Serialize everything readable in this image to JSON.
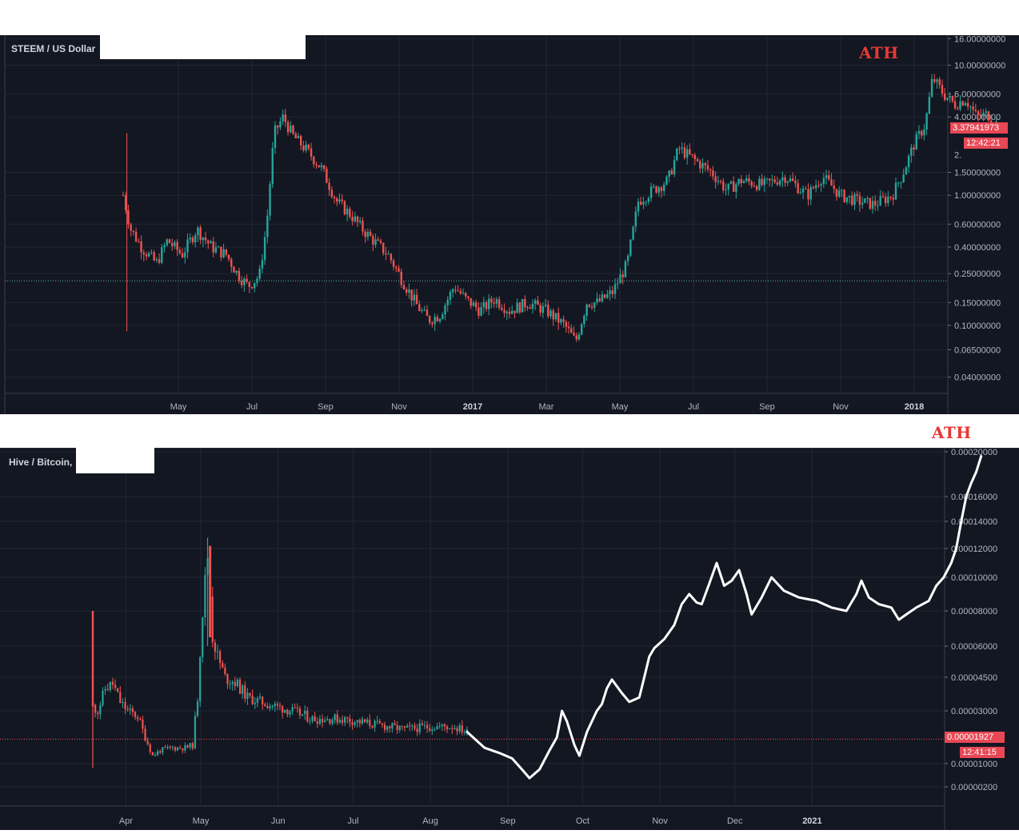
{
  "chart_data": [
    {
      "type": "candlestick",
      "title": "STEEM / US Dollar",
      "y_scale": "log",
      "ylim": [
        0.03,
        17
      ],
      "y_ticks": [
        "16.00000000",
        "10.00000000",
        "6.00000000",
        "4.00000000",
        "1.50000000",
        "1.00000000",
        "0.60000000",
        "0.40000000",
        "0.25000000",
        "0.15000000",
        "0.10000000",
        "0.06500000",
        "0.04000000"
      ],
      "x_ticks": [
        "May",
        "Jul",
        "Sep",
        "Nov",
        "2017",
        "Mar",
        "May",
        "Jul",
        "Sep",
        "Nov",
        "2018"
      ],
      "bold_x_ticks": [
        "2017",
        "2018"
      ],
      "last_price": "3.37941973",
      "countdown": "12:42:21",
      "partial_tick": "2.",
      "horizontal_line": 0.22,
      "annotation": "ATH",
      "price_path": [
        {
          "month": 0.0,
          "price": 1.0
        },
        {
          "month": 0.2,
          "price": 0.55
        },
        {
          "month": 0.5,
          "price": 0.4
        },
        {
          "month": 0.9,
          "price": 0.3
        },
        {
          "month": 1.2,
          "price": 0.45
        },
        {
          "month": 1.6,
          "price": 0.35
        },
        {
          "month": 2.0,
          "price": 0.55
        },
        {
          "month": 2.4,
          "price": 0.4
        },
        {
          "month": 2.8,
          "price": 0.35
        },
        {
          "month": 3.1,
          "price": 0.25
        },
        {
          "month": 3.4,
          "price": 0.2
        },
        {
          "month": 3.7,
          "price": 0.24
        },
        {
          "month": 3.9,
          "price": 0.6
        },
        {
          "month": 4.1,
          "price": 3.0
        },
        {
          "month": 4.35,
          "price": 4.0
        },
        {
          "month": 4.6,
          "price": 2.9
        },
        {
          "month": 5.0,
          "price": 2.2
        },
        {
          "month": 5.4,
          "price": 1.6
        },
        {
          "month": 5.8,
          "price": 0.9
        },
        {
          "month": 6.2,
          "price": 0.7
        },
        {
          "month": 6.5,
          "price": 0.55
        },
        {
          "month": 6.8,
          "price": 0.45
        },
        {
          "month": 7.2,
          "price": 0.35
        },
        {
          "month": 7.6,
          "price": 0.22
        },
        {
          "month": 8.0,
          "price": 0.14
        },
        {
          "month": 8.3,
          "price": 0.11
        },
        {
          "month": 8.6,
          "price": 0.12
        },
        {
          "month": 9.0,
          "price": 0.2
        },
        {
          "month": 9.3,
          "price": 0.16
        },
        {
          "month": 9.7,
          "price": 0.13
        },
        {
          "month": 10.1,
          "price": 0.16
        },
        {
          "month": 10.5,
          "price": 0.13
        },
        {
          "month": 11.0,
          "price": 0.15
        },
        {
          "month": 11.5,
          "price": 0.13
        },
        {
          "month": 12.0,
          "price": 0.1
        },
        {
          "month": 12.3,
          "price": 0.075
        },
        {
          "month": 12.6,
          "price": 0.15
        },
        {
          "month": 12.9,
          "price": 0.15
        },
        {
          "month": 13.3,
          "price": 0.18
        },
        {
          "month": 13.7,
          "price": 0.3
        },
        {
          "month": 14.0,
          "price": 0.9
        },
        {
          "month": 14.4,
          "price": 1.1
        },
        {
          "month": 14.8,
          "price": 1.3
        },
        {
          "month": 15.1,
          "price": 2.3
        },
        {
          "month": 15.5,
          "price": 1.9
        },
        {
          "month": 16.0,
          "price": 1.5
        },
        {
          "month": 16.4,
          "price": 1.1
        },
        {
          "month": 16.8,
          "price": 1.3
        },
        {
          "month": 17.4,
          "price": 1.2
        },
        {
          "month": 18.0,
          "price": 1.4
        },
        {
          "month": 18.6,
          "price": 1.0
        },
        {
          "month": 19.0,
          "price": 1.4
        },
        {
          "month": 19.5,
          "price": 1.0
        },
        {
          "month": 20.0,
          "price": 0.9
        },
        {
          "month": 20.4,
          "price": 0.85
        },
        {
          "month": 20.9,
          "price": 1.0
        },
        {
          "month": 21.2,
          "price": 1.5
        },
        {
          "month": 21.5,
          "price": 2.5
        },
        {
          "month": 21.8,
          "price": 3.5
        },
        {
          "month": 22.0,
          "price": 8.0
        },
        {
          "month": 22.3,
          "price": 6.0
        },
        {
          "month": 22.6,
          "price": 5.0
        },
        {
          "month": 22.9,
          "price": 5.5
        },
        {
          "month": 23.2,
          "price": 4.0
        },
        {
          "month": 23.5,
          "price": 4.2
        },
        {
          "month": 23.8,
          "price": 3.4
        }
      ]
    },
    {
      "type": "candlestick+line",
      "title": "Hive / Bitcoin,",
      "ylim": [
        0,
        0.00021
      ],
      "y_ticks": [
        "0.00020000",
        "0.00016000",
        "0.00014000",
        "0.00012000",
        "0.00010000",
        "0.00008000",
        "0.00006000",
        "0.00004500",
        "0.00003000",
        "0.00001000",
        "0.00000200"
      ],
      "x_ticks": [
        "Apr",
        "May",
        "Jun",
        "Jul",
        "Aug",
        "Sep",
        "Oct",
        "Nov",
        "Dec",
        "2021"
      ],
      "bold_x_ticks": [
        "2021"
      ],
      "last_price": "0.00001927",
      "countdown": "12:41:15",
      "horizontal_line": 1.927e-05,
      "annotation": "ATH",
      "candle_path": [
        {
          "day": 0,
          "price": 3.2e-05
        },
        {
          "day": 2,
          "price": 3e-05
        },
        {
          "day": 5,
          "price": 4e-05
        },
        {
          "day": 8,
          "price": 4.2e-05
        },
        {
          "day": 11,
          "price": 3.4e-05
        },
        {
          "day": 14,
          "price": 3e-05
        },
        {
          "day": 18,
          "price": 2.8e-05
        },
        {
          "day": 21,
          "price": 2e-05
        },
        {
          "day": 24,
          "price": 1.3e-05
        },
        {
          "day": 27,
          "price": 1.5e-05
        },
        {
          "day": 32,
          "price": 1.6e-05
        },
        {
          "day": 37,
          "price": 1.6e-05
        },
        {
          "day": 40,
          "price": 1.7e-05
        },
        {
          "day": 42,
          "price": 3.6e-05
        },
        {
          "day": 44,
          "price": 8e-05
        },
        {
          "day": 46,
          "price": 0.000115
        },
        {
          "day": 48,
          "price": 6.5e-05
        },
        {
          "day": 50,
          "price": 5.5e-05
        },
        {
          "day": 53,
          "price": 4.5e-05
        },
        {
          "day": 57,
          "price": 4.3e-05
        },
        {
          "day": 62,
          "price": 3.6e-05
        },
        {
          "day": 70,
          "price": 3.3e-05
        },
        {
          "day": 80,
          "price": 3e-05
        },
        {
          "day": 88,
          "price": 2.7e-05
        },
        {
          "day": 100,
          "price": 2.7e-05
        },
        {
          "day": 112,
          "price": 2.5e-05
        },
        {
          "day": 125,
          "price": 2.3e-05
        },
        {
          "day": 135,
          "price": 2.4e-05
        },
        {
          "day": 145,
          "price": 2.4e-05
        },
        {
          "day": 150,
          "price": 2.2e-05
        }
      ],
      "line_path": [
        {
          "day": 150,
          "price": 2.2e-05
        },
        {
          "day": 157,
          "price": 1.6e-05
        },
        {
          "day": 163,
          "price": 1.4e-05
        },
        {
          "day": 168,
          "price": 1.2e-05
        },
        {
          "day": 172,
          "price": 8e-06
        },
        {
          "day": 175,
          "price": 5e-06
        },
        {
          "day": 179,
          "price": 8e-06
        },
        {
          "day": 183,
          "price": 1.5e-05
        },
        {
          "day": 186,
          "price": 2e-05
        },
        {
          "day": 188,
          "price": 3e-05
        },
        {
          "day": 190,
          "price": 2.6e-05
        },
        {
          "day": 193,
          "price": 1.7e-05
        },
        {
          "day": 195,
          "price": 1.3e-05
        },
        {
          "day": 198,
          "price": 2.2e-05
        },
        {
          "day": 202,
          "price": 3e-05
        },
        {
          "day": 204,
          "price": 3.3e-05
        },
        {
          "day": 206,
          "price": 4e-05
        },
        {
          "day": 208,
          "price": 4.4e-05
        },
        {
          "day": 212,
          "price": 3.8e-05
        },
        {
          "day": 215,
          "price": 3.4e-05
        },
        {
          "day": 219,
          "price": 3.6e-05
        },
        {
          "day": 221,
          "price": 4.5e-05
        },
        {
          "day": 223,
          "price": 5.5e-05
        },
        {
          "day": 225,
          "price": 5.9e-05
        },
        {
          "day": 229,
          "price": 6.4e-05
        },
        {
          "day": 233,
          "price": 7.2e-05
        },
        {
          "day": 236,
          "price": 8.4e-05
        },
        {
          "day": 239,
          "price": 9e-05
        },
        {
          "day": 242,
          "price": 8.5e-05
        },
        {
          "day": 244,
          "price": 8.4e-05
        },
        {
          "day": 247,
          "price": 9.6e-05
        },
        {
          "day": 250,
          "price": 0.00011
        },
        {
          "day": 253,
          "price": 9.5e-05
        },
        {
          "day": 256,
          "price": 9.8e-05
        },
        {
          "day": 259,
          "price": 0.000105
        },
        {
          "day": 262,
          "price": 9e-05
        },
        {
          "day": 264,
          "price": 7.8e-05
        },
        {
          "day": 268,
          "price": 8.8e-05
        },
        {
          "day": 272,
          "price": 0.0001
        },
        {
          "day": 277,
          "price": 9.2e-05
        },
        {
          "day": 283,
          "price": 8.8e-05
        },
        {
          "day": 290,
          "price": 8.6e-05
        },
        {
          "day": 296,
          "price": 8.2e-05
        },
        {
          "day": 302,
          "price": 8e-05
        },
        {
          "day": 306,
          "price": 9e-05
        },
        {
          "day": 308,
          "price": 9.8e-05
        },
        {
          "day": 311,
          "price": 8.8e-05
        },
        {
          "day": 315,
          "price": 8.4e-05
        },
        {
          "day": 320,
          "price": 8.2e-05
        },
        {
          "day": 323,
          "price": 7.5e-05
        },
        {
          "day": 326,
          "price": 7.8e-05
        },
        {
          "day": 330,
          "price": 8.2e-05
        },
        {
          "day": 335,
          "price": 8.6e-05
        },
        {
          "day": 338,
          "price": 9.5e-05
        },
        {
          "day": 341,
          "price": 0.0001
        },
        {
          "day": 344,
          "price": 0.00011
        },
        {
          "day": 346,
          "price": 0.00012
        },
        {
          "day": 348,
          "price": 0.00014
        },
        {
          "day": 350,
          "price": 0.00016
        },
        {
          "day": 352,
          "price": 0.000172
        },
        {
          "day": 354,
          "price": 0.000182
        },
        {
          "day": 356,
          "price": 0.000196
        }
      ]
    }
  ]
}
